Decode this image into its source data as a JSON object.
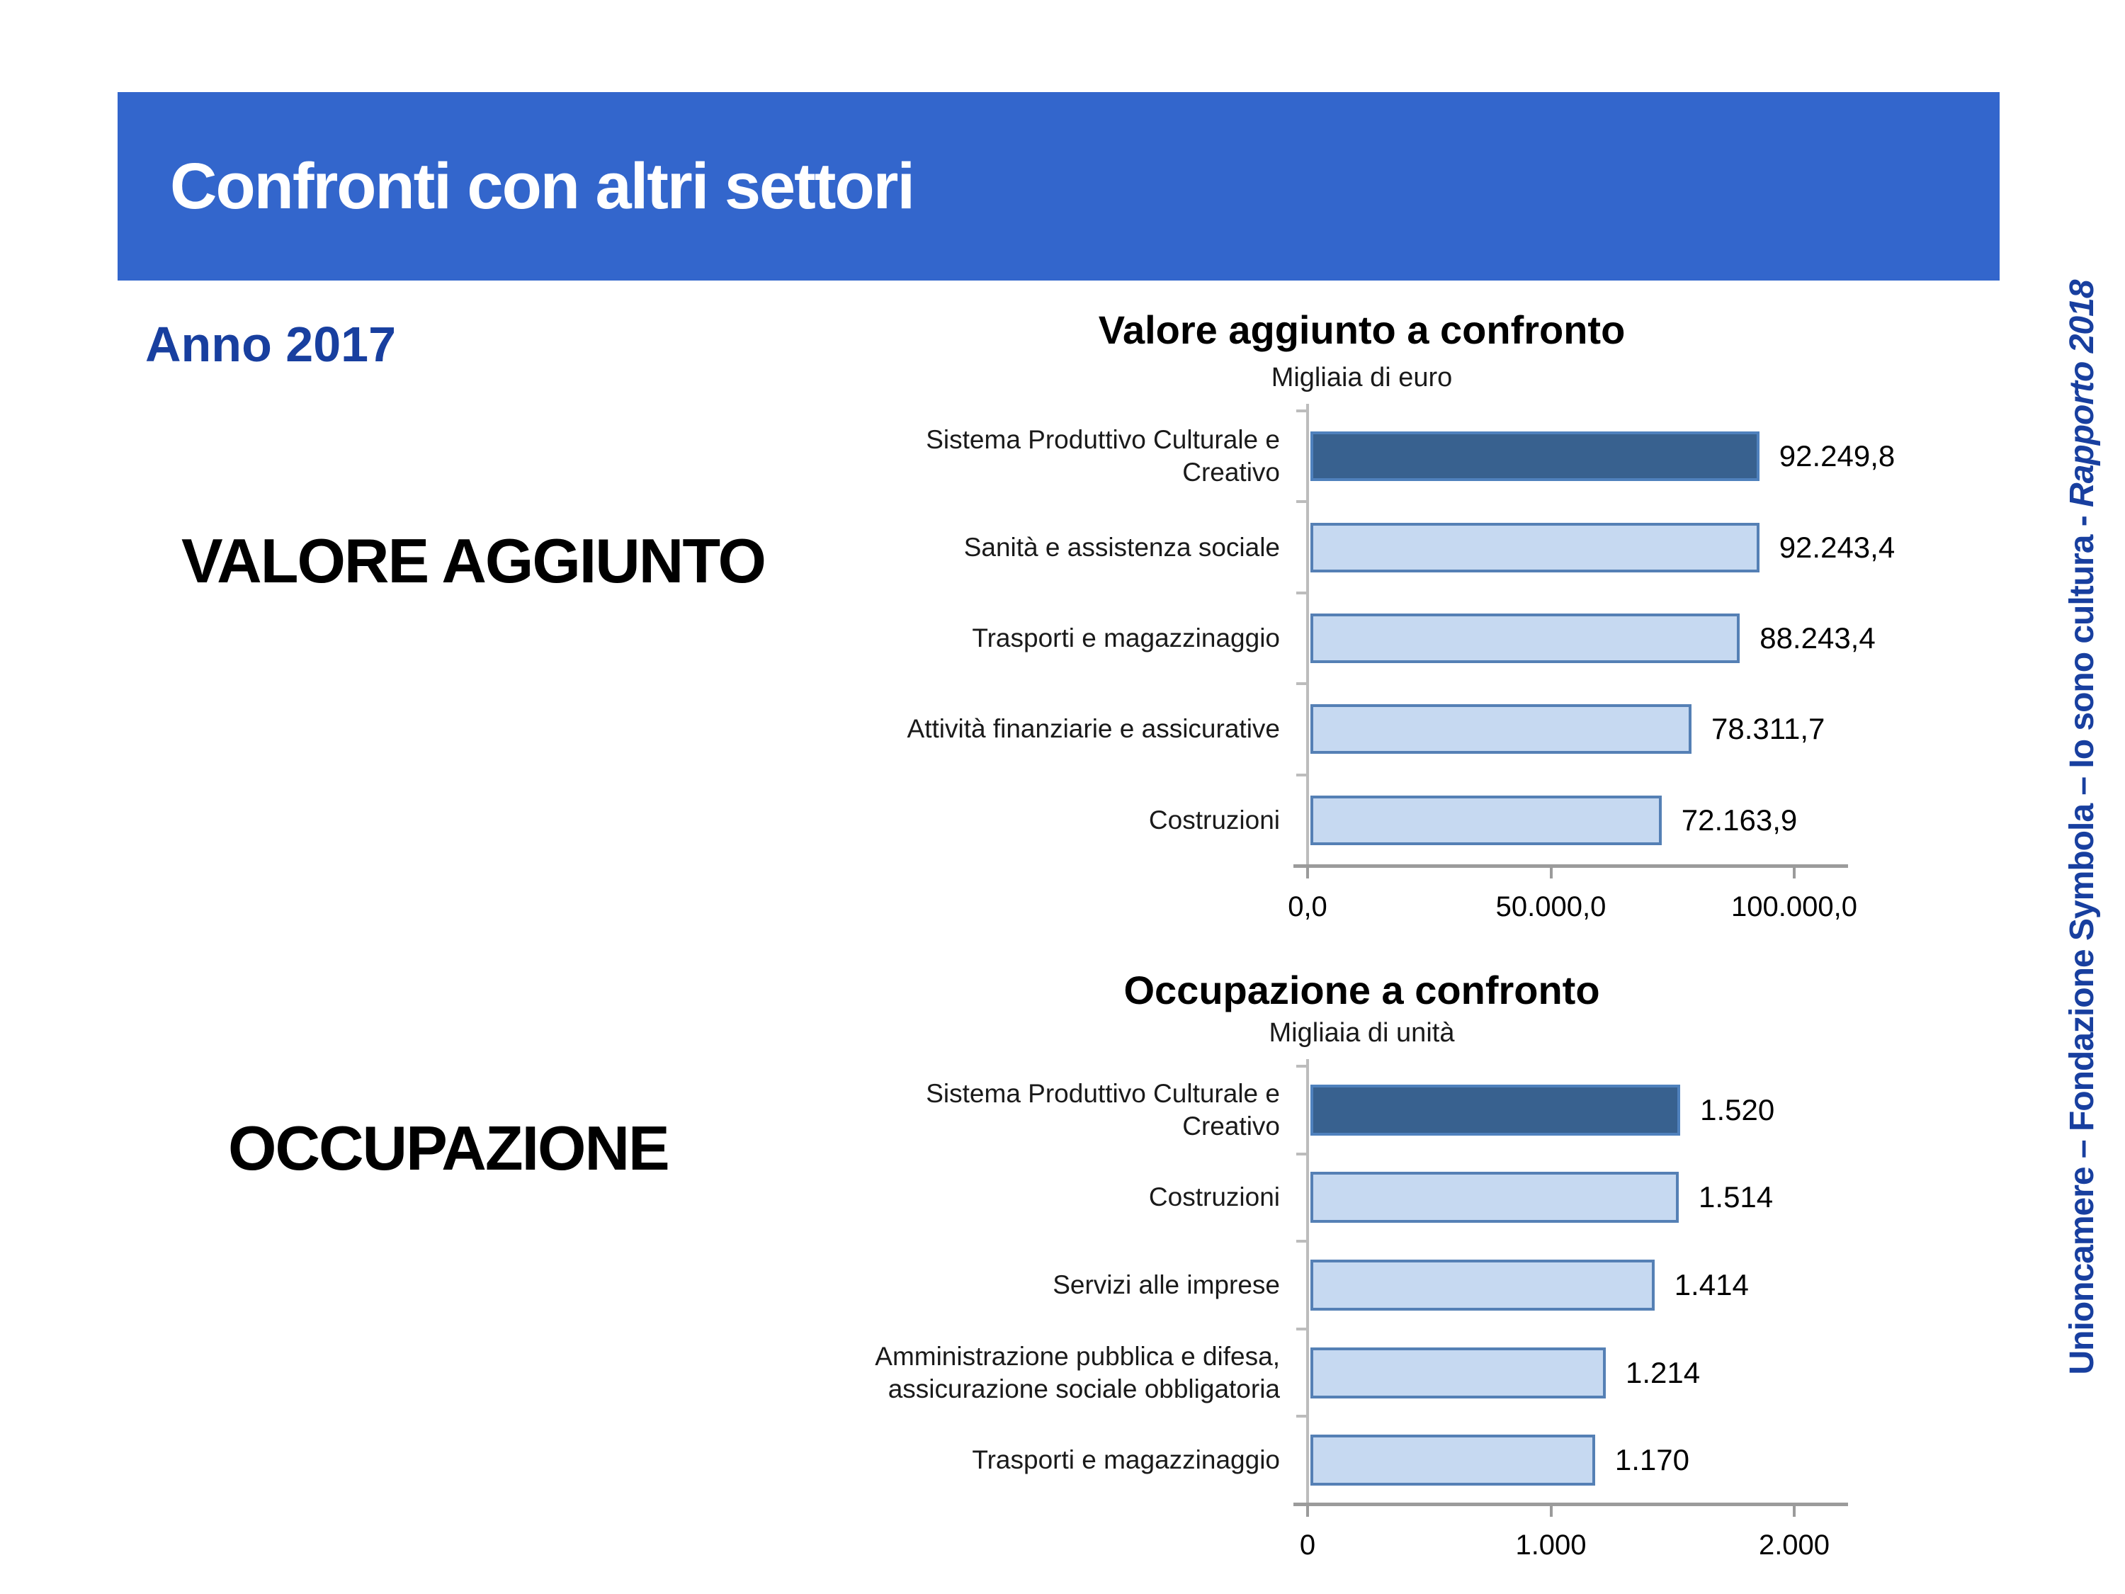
{
  "slide": {
    "header": {
      "title": "Confronti con altri settori"
    },
    "year_label": "Anno 2017",
    "section_labels": {
      "valore": "VALORE AGGIUNTO",
      "occupazione": "OCCUPAZIONE"
    },
    "side_note": {
      "text": "Unioncamere – Fondazione Symbola – Io sono cultura - ",
      "italic_text": "Rapporto 2018"
    }
  },
  "colors": {
    "banner_blue": "#3366cc",
    "accent_blue_text": "#183f9f",
    "bar_light_fill": "#c6d9f1",
    "bar_light_border": "#5580b5",
    "bar_dark_fill": "#38618f",
    "bar_dark_border": "#4f81bd",
    "axis_gray": "#9b9b9b",
    "axis_light_gray": "#bcbcbc"
  },
  "chart_data": [
    {
      "type": "bar",
      "orientation": "horizontal",
      "title": "Valore aggiunto a confronto",
      "unit_label": "Migliaia di euro",
      "categories": [
        [
          "Sistema Produttivo Culturale e",
          "Creativo"
        ],
        [
          "Sanità e assistenza sociale"
        ],
        [
          "Trasporti e magazzinaggio"
        ],
        [
          "Attività finanziarie e assicurative"
        ],
        [
          "Costruzioni"
        ]
      ],
      "values": [
        92249.8,
        92243.4,
        88243.4,
        78311.7,
        72163.9
      ],
      "value_labels": [
        "92.249,8",
        "92.243,4",
        "88.243,4",
        "78.311,7",
        "72.163,9"
      ],
      "highlight_index": 0,
      "x_axis": {
        "tick_labels": [
          "0,0",
          "50.000,0",
          "100.000,0"
        ],
        "tick_values": [
          0,
          50000,
          100000
        ]
      },
      "xlim": [
        0,
        110000
      ],
      "grid": false,
      "legend": "none"
    },
    {
      "type": "bar",
      "orientation": "horizontal",
      "title": "Occupazione a confronto",
      "unit_label": "Migliaia di unità",
      "categories": [
        [
          "Sistema Produttivo Culturale e",
          "Creativo"
        ],
        [
          "Costruzioni"
        ],
        [
          "Servizi alle imprese"
        ],
        [
          "Amministrazione pubblica e difesa,",
          "assicurazione sociale obbligatoria"
        ],
        [
          "Trasporti e magazzinaggio"
        ]
      ],
      "values": [
        1520,
        1514,
        1414,
        1214,
        1170
      ],
      "value_labels": [
        "1.520",
        "1.514",
        "1.414",
        "1.214",
        "1.170"
      ],
      "highlight_index": 0,
      "x_axis": {
        "tick_labels": [
          "0",
          "1.000",
          "2.000"
        ],
        "tick_values": [
          0,
          1000,
          2000
        ]
      },
      "xlim": [
        0,
        2200
      ],
      "grid": false,
      "legend": "none"
    }
  ]
}
